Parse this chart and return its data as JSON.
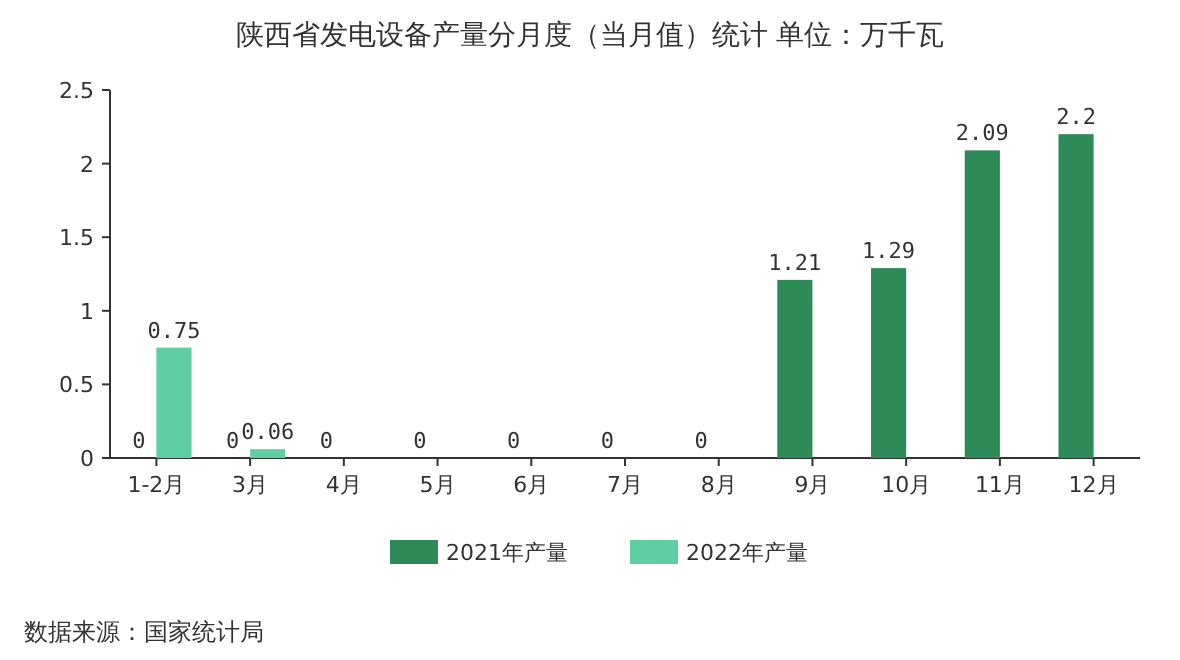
{
  "chart_data": {
    "type": "bar",
    "title": "陕西省发电设备产量分月度（当月值）统计 单位：万千瓦",
    "categories": [
      "1-2月",
      "3月",
      "4月",
      "5月",
      "6月",
      "7月",
      "8月",
      "9月",
      "10月",
      "11月",
      "12月"
    ],
    "series": [
      {
        "name": "2021年产量",
        "color": "#2e8b57",
        "values": [
          0,
          0,
          0,
          0,
          0,
          0,
          0,
          1.21,
          1.29,
          2.09,
          2.2
        ]
      },
      {
        "name": "2022年产量",
        "color": "#5fcfa3",
        "values": [
          0.75,
          0.06,
          null,
          null,
          null,
          null,
          null,
          null,
          null,
          null,
          null
        ]
      }
    ],
    "ylim": [
      0,
      2.5
    ],
    "yticks": [
      0,
      0.5,
      1,
      1.5,
      2,
      2.5
    ],
    "grid": false,
    "data_labels": true,
    "legend": "bottom",
    "annotations": [
      "数据来源：国家统计局"
    ]
  }
}
